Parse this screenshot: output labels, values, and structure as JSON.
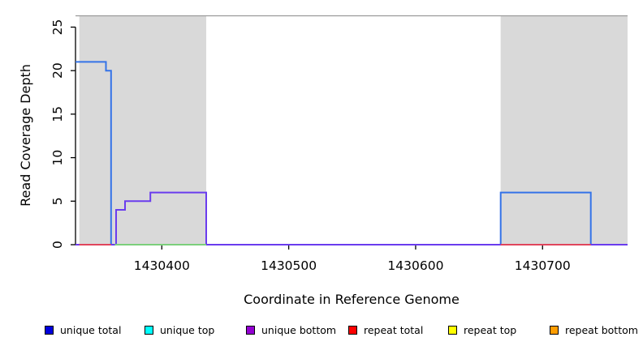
{
  "chart_data": {
    "type": "line",
    "title": "",
    "xlabel": "Coordinate in Reference Genome",
    "ylabel": "Read Coverage Depth",
    "xlim": [
      1430332,
      1430767
    ],
    "ylim": [
      0,
      26.3
    ],
    "x_ticks": [
      1430400,
      1430500,
      1430600,
      1430700
    ],
    "y_ticks": [
      0,
      5,
      10,
      15,
      20,
      25
    ],
    "grid": false,
    "shade_color": "#d9d9d9",
    "shaded_regions": [
      {
        "x0": 1430335,
        "x1": 1430435
      },
      {
        "x0": 1430667,
        "x1": 1430767
      }
    ],
    "series": [
      {
        "name": "unique total",
        "color": "#3473e8",
        "points": [
          [
            1430332,
            21
          ],
          [
            1430356,
            21
          ],
          [
            1430356,
            20
          ],
          [
            1430360,
            20
          ],
          [
            1430360,
            0
          ],
          [
            1430667,
            0
          ],
          [
            1430667,
            6
          ],
          [
            1430738,
            6
          ],
          [
            1430738,
            0
          ],
          [
            1430767,
            0
          ]
        ]
      },
      {
        "name": "unique bottom",
        "color": "#6a3cee",
        "points": [
          [
            1430332,
            0
          ],
          [
            1430364,
            0
          ],
          [
            1430364,
            4
          ],
          [
            1430371,
            4
          ],
          [
            1430371,
            5
          ],
          [
            1430391,
            5
          ],
          [
            1430391,
            6
          ],
          [
            1430435,
            6
          ],
          [
            1430435,
            0
          ],
          [
            1430767,
            0
          ]
        ]
      },
      {
        "name": "zero-overlap-green",
        "color": "#7ccf7c",
        "points": [
          [
            1430363,
            0
          ],
          [
            1430435,
            0
          ]
        ]
      },
      {
        "name": "repeat total (left region)",
        "color": "#e0455c",
        "points": [
          [
            1430335,
            0
          ],
          [
            1430360,
            0
          ]
        ]
      },
      {
        "name": "repeat total (right region)",
        "color": "#e0455c",
        "points": [
          [
            1430667,
            0
          ],
          [
            1430738,
            0
          ]
        ]
      }
    ],
    "legend_position": "bottom"
  },
  "legend": {
    "items": [
      {
        "label": "unique total",
        "color": "#0000dd"
      },
      {
        "label": "unique top",
        "color": "#00ffff"
      },
      {
        "label": "unique bottom",
        "color": "#9400d3"
      },
      {
        "label": "repeat total",
        "color": "#ff0000"
      },
      {
        "label": "repeat top",
        "color": "#ffff00"
      },
      {
        "label": "repeat bottom",
        "color": "#ff9d00"
      }
    ]
  }
}
